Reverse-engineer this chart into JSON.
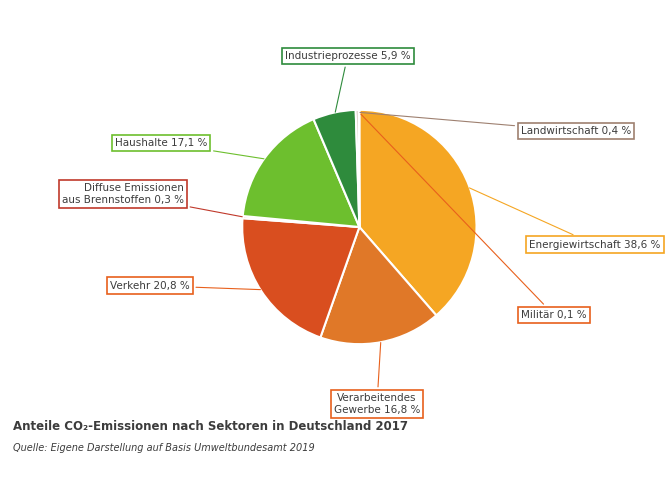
{
  "sectors": [
    "Energiewirtschaft",
    "Verarbeitendes\nGewerbe",
    "Verkehr",
    "Diffuse Emissionen\naus Brennstoffen",
    "Haushalte",
    "Industrieprozesse",
    "Landwirtschaft",
    "Militär"
  ],
  "labels_display": [
    "Energiewirtschaft 38,6 %",
    "Verarbeitendes\nGewerbe 16,8 %",
    "Verkehr 20,8 %",
    "Diffuse Emissionen\naus Brennstoffen 0,3 %",
    "Haushalte 17,1 %",
    "Industrieprozesse 5,9 %",
    "Landwirtschaft 0,4 %",
    "Militär 0,1 %"
  ],
  "values": [
    38.6,
    16.8,
    20.8,
    0.3,
    17.1,
    5.9,
    0.4,
    0.1
  ],
  "colors": [
    "#F5A623",
    "#E8601C",
    "#E8601C",
    "#C0392B",
    "#6DBF2E",
    "#2E8B3C",
    "#B8A090",
    "#E8601C"
  ],
  "pie_colors": [
    "#F5A623",
    "#E07020",
    "#D94E1F",
    "#C0392B",
    "#6DBF2E",
    "#2E8B3C",
    "#B8A090",
    "#E07020"
  ],
  "box_edge_colors": [
    "#F5A623",
    "#E8601C",
    "#E8601C",
    "#C0392B",
    "#6DBF2E",
    "#2E8B3C",
    "#9E8070",
    "#E8601C"
  ],
  "title": "Anteile CO₂-Emissionen nach Sektoren in Deutschland 2017",
  "source": "Quelle: Eigene Darstellung auf Basis Umweltbundesamt 2019",
  "background_color": "#FFFFFF"
}
